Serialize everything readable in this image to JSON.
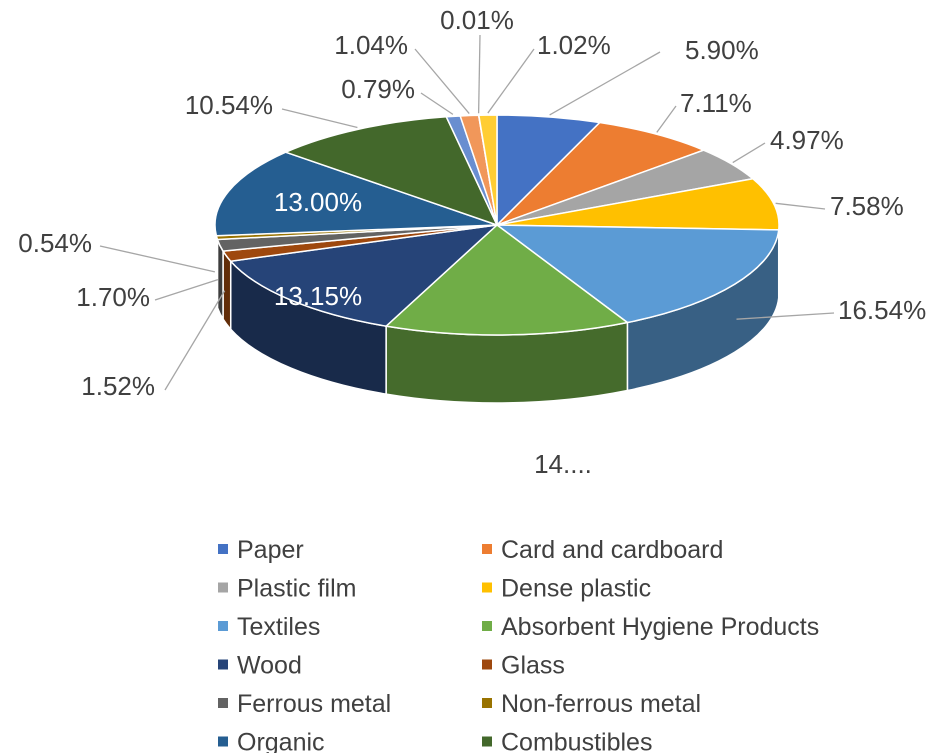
{
  "chart_data": {
    "type": "pie",
    "title": "",
    "series": [
      {
        "label": "Paper",
        "value": 5.9,
        "display": "5.90%",
        "color": "#4472C4"
      },
      {
        "label": "Card and cardboard",
        "value": 7.11,
        "display": "7.11%",
        "color": "#ED7D31"
      },
      {
        "label": "Plastic film",
        "value": 4.97,
        "display": "4.97%",
        "color": "#A5A5A5"
      },
      {
        "label": "Dense plastic",
        "value": 7.58,
        "display": "7.58%",
        "color": "#FFC000"
      },
      {
        "label": "Textiles",
        "value": 16.54,
        "display": "16.54%",
        "color": "#5B9BD5"
      },
      {
        "label": "Absorbent Hygiene Products",
        "value": 14.0,
        "display": "14....",
        "color": "#70AD47"
      },
      {
        "label": "Wood",
        "value": 13.15,
        "display": "13.15%",
        "color": "#264478"
      },
      {
        "label": "Glass",
        "value": 1.52,
        "display": "1.52%",
        "color": "#9E480E"
      },
      {
        "label": "Ferrous metal",
        "value": 1.7,
        "display": "1.70%",
        "color": "#636363"
      },
      {
        "label": "Non-ferrous metal",
        "value": 0.54,
        "display": "0.54%",
        "color": "#997300"
      },
      {
        "label": "Organic",
        "value": 13.0,
        "display": "13.00%",
        "color": "#255E91"
      },
      {
        "label": "Combustibles",
        "value": 10.54,
        "display": "10.54%",
        "color": "#43682B"
      },
      {
        "label": "",
        "value": 0.79,
        "display": "0.79%",
        "color": "#698ED0"
      },
      {
        "label": "",
        "value": 1.04,
        "display": "1.04%",
        "color": "#F1975A"
      },
      {
        "label": "",
        "value": 0.01,
        "display": "0.01%",
        "color": "#B7B7B7"
      },
      {
        "label": "",
        "value": 1.02,
        "display": "1.02%",
        "color": "#FFCD33"
      }
    ],
    "legend": {
      "placement": "bottom",
      "items": [
        "Paper",
        "Card and cardboard",
        "Plastic film",
        "Dense plastic",
        "Textiles",
        "Absorbent Hygiene Products",
        "Wood",
        "Glass",
        "Ferrous metal",
        "Non-ferrous metal",
        "Organic",
        "Combustibles"
      ]
    },
    "style": "3d"
  }
}
